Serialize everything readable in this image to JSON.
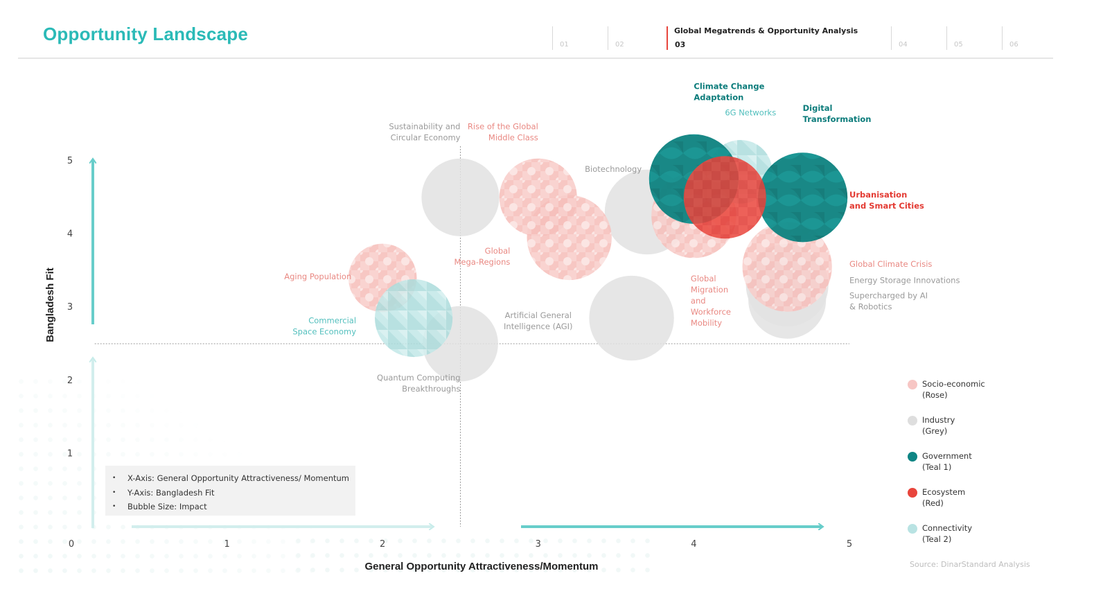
{
  "page": {
    "title": "Opportunity Landscape",
    "source": "Source: DinarStandard Analysis"
  },
  "nav": {
    "sections": [
      {
        "num": "01",
        "title": "",
        "active": false
      },
      {
        "num": "02",
        "title": "",
        "active": false
      },
      {
        "num": "03",
        "title": "Global Megatrends & Opportunity Analysis",
        "active": true
      },
      {
        "num": "04",
        "title": "",
        "active": false
      },
      {
        "num": "05",
        "title": "",
        "active": false
      },
      {
        "num": "06",
        "title": "",
        "active": false
      }
    ]
  },
  "colors": {
    "accent": "#2bbab7",
    "rose": "#f7c6c4",
    "rose_label": "#e98882",
    "grey": "#dddddd",
    "grey_label": "#9a9a9a",
    "teal1": "#0e8584",
    "teal1_label": "#0c7c7b",
    "red": "#e8453c",
    "red_label": "#e33b33",
    "teal2": "#b9e3e3",
    "teal2_label": "#52bfbd",
    "active_nav": "#e8453c"
  },
  "notes": [
    "X-Axis: General Opportunity Attractiveness/ Momentum",
    "Y-Axis: Bangladesh Fit",
    "Bubble Size: Impact"
  ],
  "legend": [
    {
      "key": "rose",
      "line1": "Socio-economic",
      "line2": "(Rose)"
    },
    {
      "key": "grey",
      "line1": "Industry",
      "line2": "(Grey)"
    },
    {
      "key": "teal1",
      "line1": "Government",
      "line2": "(Teal 1)"
    },
    {
      "key": "red",
      "line1": "Ecosystem",
      "line2": "(Red)"
    },
    {
      "key": "teal2",
      "line1": "Connectivity",
      "line2": "(Teal 2)"
    }
  ],
  "chart_data": {
    "type": "bubble",
    "xlabel": "General Opportunity Attractiveness/Momentum",
    "ylabel": "Bangladesh Fit",
    "xlim": [
      0,
      5
    ],
    "ylim": [
      0,
      5
    ],
    "xticks": [
      "0",
      "1",
      "2",
      "3",
      "4",
      "5"
    ],
    "yticks": [
      "1",
      "2",
      "3",
      "4",
      "5"
    ],
    "reference_lines": {
      "x": 2.5,
      "y": 2.5
    },
    "grid": false,
    "legend_position": "right",
    "series": [
      {
        "label": "Sustainability and Circular Economy",
        "category": "grey",
        "x": 2.5,
        "y": 4.5,
        "size": 3.3
      },
      {
        "label": "Rise of the Global Middle Class",
        "category": "rose",
        "x": 3.0,
        "y": 4.5,
        "size": 3.3
      },
      {
        "label": "Biotechnology",
        "category": "grey",
        "x": 3.7,
        "y": 4.3,
        "size": 3.6
      },
      {
        "label": "Global Mega-Regions",
        "category": "rose",
        "x": 3.2,
        "y": 3.95,
        "size": 3.6
      },
      {
        "label": "Aging Population",
        "category": "rose",
        "x": 2.0,
        "y": 3.4,
        "size": 2.9
      },
      {
        "label": "Commercial Space Economy",
        "category": "teal2",
        "x": 2.2,
        "y": 2.85,
        "size": 3.3
      },
      {
        "label": "Quantum Computing Breakthroughs",
        "category": "grey",
        "x": 2.5,
        "y": 2.5,
        "size": 3.2
      },
      {
        "label": "Artificial General Intelligence (AGI)",
        "category": "grey",
        "x": 3.6,
        "y": 2.85,
        "size": 3.6
      },
      {
        "label": "Global Migration and Workforce Mobility",
        "category": "rose",
        "x": 4.0,
        "y": 4.25,
        "size": 3.6
      },
      {
        "label": "Climate Change Adaptation",
        "category": "teal1",
        "x": 4.0,
        "y": 4.75,
        "size": 3.8
      },
      {
        "label": "6G Networks",
        "category": "teal2",
        "x": 4.3,
        "y": 4.85,
        "size": 2.7
      },
      {
        "label": "Digital Transformation",
        "category": "teal1",
        "x": 4.7,
        "y": 4.5,
        "size": 3.8
      },
      {
        "label": "Urbanisation and Smart Cities",
        "category": "red",
        "x": 4.2,
        "y": 4.5,
        "size": 3.5
      },
      {
        "label": "Global Climate Crisis",
        "category": "rose",
        "x": 4.6,
        "y": 3.55,
        "size": 3.8
      },
      {
        "label": "Energy Storage Innovations",
        "category": "grey",
        "x": 4.6,
        "y": 3.1,
        "size": 3.3
      },
      {
        "label": "Supercharged by AI & Robotics",
        "category": "grey",
        "x": 4.6,
        "y": 3.3,
        "size": 3.5
      }
    ],
    "bubble_labels": [
      {
        "name": "sustainability",
        "category": "grey",
        "anchor": "end",
        "x": 2.5,
        "y": 5.43,
        "lines": [
          "Sustainability and",
          "Circular Economy"
        ]
      },
      {
        "name": "middle-class",
        "category": "rose",
        "anchor": "end",
        "x": 3.0,
        "y": 5.43,
        "lines": [
          "Rise of the Global",
          "Middle Class"
        ]
      },
      {
        "name": "biotechnology",
        "category": "grey",
        "anchor": "start",
        "x": 3.3,
        "y": 4.85,
        "lines": [
          "Biotechnology"
        ]
      },
      {
        "name": "mega-regions",
        "category": "rose",
        "anchor": "end",
        "x": 2.82,
        "y": 3.73,
        "lines": [
          "Global",
          "Mega-Regions"
        ]
      },
      {
        "name": "aging-population",
        "category": "rose",
        "anchor": "end",
        "x": 1.8,
        "y": 3.38,
        "lines": [
          "Aging Population"
        ]
      },
      {
        "name": "space-economy",
        "category": "teal2",
        "anchor": "end",
        "x": 1.83,
        "y": 2.78,
        "lines": [
          "Commercial",
          "Space Economy"
        ]
      },
      {
        "name": "quantum-computing",
        "category": "grey",
        "anchor": "end",
        "x": 2.5,
        "y": 2.0,
        "lines": [
          "Quantum Computing",
          "Breakthroughs"
        ]
      },
      {
        "name": "agi",
        "category": "grey",
        "anchor": "middle",
        "x": 3.0,
        "y": 2.85,
        "lines": [
          "Artificial General",
          "Intelligence (AGI)"
        ]
      },
      {
        "name": "migration",
        "category": "rose",
        "anchor": "start",
        "x": 3.98,
        "y": 3.35,
        "lines": [
          "Global",
          "Migration",
          "and",
          "Workforce",
          "Mobility"
        ]
      },
      {
        "name": "climate-adaptation",
        "category": "teal1",
        "anchor": "start",
        "x": 4.0,
        "y": 5.98,
        "lines": [
          "Climate Change",
          "Adaptation"
        ]
      },
      {
        "name": "6g-networks",
        "category": "teal2",
        "anchor": "start",
        "x": 4.2,
        "y": 5.62,
        "lines": [
          "6G Networks"
        ]
      },
      {
        "name": "digital-transformation",
        "category": "teal1",
        "anchor": "start",
        "x": 4.7,
        "y": 5.68,
        "lines": [
          "Digital",
          "Transformation"
        ]
      },
      {
        "name": "urbanisation",
        "category": "red",
        "anchor": "start",
        "x": 5.0,
        "y": 4.5,
        "lines": [
          "Urbanisation",
          "and Smart Cities"
        ]
      },
      {
        "name": "climate-crisis",
        "category": "rose",
        "anchor": "start",
        "x": 5.0,
        "y": 3.55,
        "lines": [
          "Global Climate Crisis"
        ]
      },
      {
        "name": "energy-storage",
        "category": "grey",
        "anchor": "start",
        "x": 5.0,
        "y": 3.33,
        "lines": [
          "Energy Storage Innovations"
        ]
      },
      {
        "name": "ai-robotics",
        "category": "grey",
        "anchor": "start",
        "x": 5.0,
        "y": 3.12,
        "lines": [
          "Supercharged by AI",
          "& Robotics"
        ]
      }
    ]
  }
}
